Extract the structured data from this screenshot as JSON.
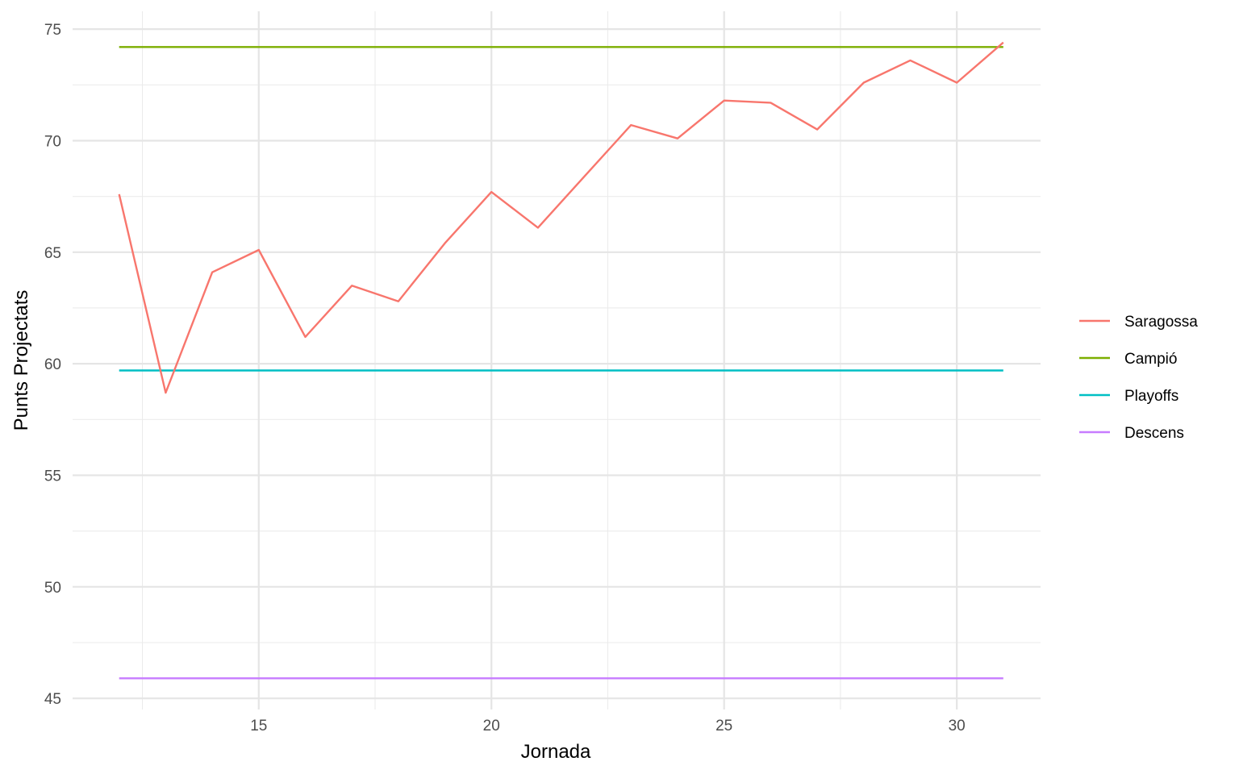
{
  "chart_data": {
    "type": "line",
    "title": "",
    "xlabel": "Jornada",
    "ylabel": "Punts Projectats",
    "xlim": [
      11,
      31.8
    ],
    "ylim": [
      44.5,
      75.8
    ],
    "x_ticks": [
      15,
      20,
      25,
      30
    ],
    "y_ticks": [
      45,
      50,
      55,
      60,
      65,
      70,
      75
    ],
    "grid": true,
    "legend_position": "right",
    "series": [
      {
        "name": "Saragossa",
        "color": "#F8766D",
        "x": [
          12,
          13,
          14,
          15,
          16,
          17,
          18,
          19,
          20,
          21,
          22,
          23,
          24,
          25,
          26,
          27,
          28,
          29,
          30,
          31
        ],
        "y": [
          67.6,
          58.7,
          64.1,
          65.1,
          61.2,
          63.5,
          62.8,
          65.4,
          67.7,
          66.1,
          68.4,
          70.7,
          70.1,
          71.8,
          71.7,
          70.5,
          72.6,
          73.6,
          72.6,
          74.4
        ]
      },
      {
        "name": "Campió",
        "color": "#7CAE00",
        "x": [
          12,
          31
        ],
        "y": [
          74.2,
          74.2
        ]
      },
      {
        "name": "Playoffs",
        "color": "#00BFC4",
        "x": [
          12,
          31
        ],
        "y": [
          59.7,
          59.7
        ]
      },
      {
        "name": "Descens",
        "color": "#C77CFF",
        "x": [
          12,
          31
        ],
        "y": [
          45.9,
          45.9
        ]
      }
    ]
  }
}
